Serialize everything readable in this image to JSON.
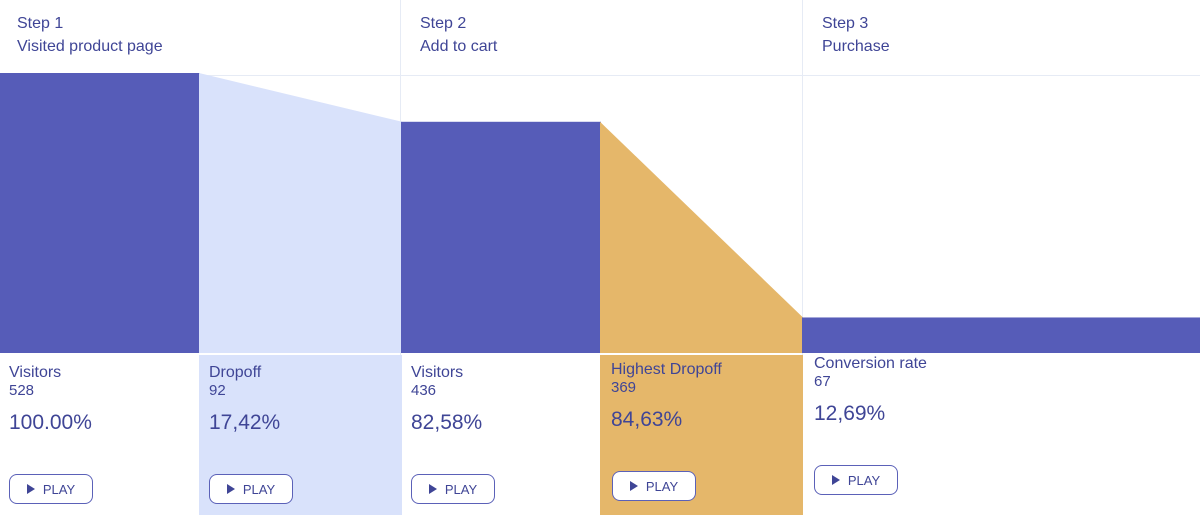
{
  "colors": {
    "visitors": "#565cb8",
    "dropoff": "#d9e2fb",
    "highest_dropoff": "#e5b76a"
  },
  "steps": [
    {
      "step": "Step 1",
      "name": "Visited product page"
    },
    {
      "step": "Step 2",
      "name": "Add to cart"
    },
    {
      "step": "Step 3",
      "name": "Purchase"
    }
  ],
  "stats": [
    {
      "label": "Visitors",
      "count": "528",
      "percent": "100.00%",
      "play": "PLAY"
    },
    {
      "label": "Dropoff",
      "count": "92",
      "percent": "17,42%",
      "play": "PLAY"
    },
    {
      "label": "Visitors",
      "count": "436",
      "percent": "82,58%",
      "play": "PLAY"
    },
    {
      "label": "Highest Dropoff",
      "count": "369",
      "percent": "84,63%",
      "play": "PLAY"
    },
    {
      "label": "Conversion rate",
      "count": "67",
      "percent": "12,69%",
      "play": "PLAY"
    }
  ],
  "chart_data": {
    "type": "bar",
    "categories": [
      "Visited product page",
      "Add to cart",
      "Purchase"
    ],
    "values": [
      528,
      436,
      67
    ],
    "dropoffs": [
      92,
      369
    ],
    "ylim": [
      0,
      528
    ]
  }
}
